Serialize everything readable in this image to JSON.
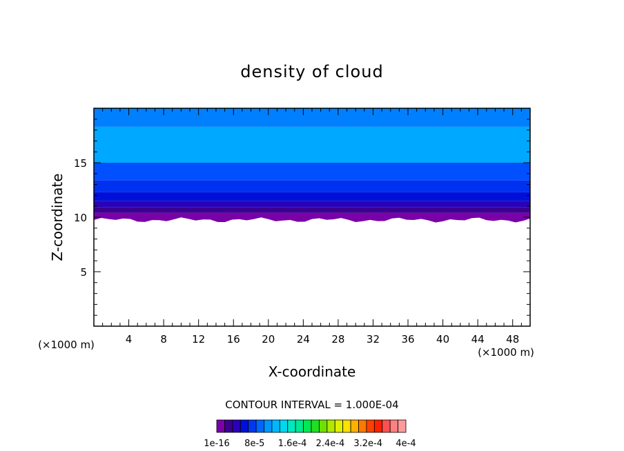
{
  "chart_data": {
    "type": "heatmap",
    "title": "density of cloud",
    "xlabel": "X-coordinate",
    "ylabel": "Z-coordinate",
    "x_unit": "(×1000 m)",
    "x_unit_right": "(×1000 m)",
    "xlim": [
      0,
      50
    ],
    "ylim": [
      0,
      20
    ],
    "x_ticks": [
      4,
      8,
      12,
      16,
      20,
      24,
      28,
      32,
      36,
      40,
      44,
      48
    ],
    "y_ticks": [
      5,
      10,
      15
    ],
    "contour_interval_label": "CONTOUR INTERVAL = 1.000E-04",
    "colorbar_tick_labels": [
      "1e-16",
      "8e-5",
      "1.6e-4",
      "2.4e-4",
      "3.2e-4",
      "4e-4"
    ],
    "colorbar_colors": [
      "#7a00a8",
      "#3c0090",
      "#2a00b8",
      "#0010d8",
      "#0038f0",
      "#0066ff",
      "#0095ff",
      "#00b8ff",
      "#00d8f0",
      "#00e8c0",
      "#00e890",
      "#00e850",
      "#20e020",
      "#70e000",
      "#b0e800",
      "#e0f000",
      "#ffe000",
      "#ffb000",
      "#ff7800",
      "#ff4000",
      "#ff2000",
      "#ff5050",
      "#ff8080",
      "#ff9a9a"
    ],
    "bands": [
      {
        "z_bottom": 9.6,
        "z_top": 10.4,
        "color": "#7a00a8"
      },
      {
        "z_bottom": 10.4,
        "z_top": 10.9,
        "color": "#3c0090"
      },
      {
        "z_bottom": 10.9,
        "z_top": 11.5,
        "color": "#2a00b8"
      },
      {
        "z_bottom": 11.5,
        "z_top": 12.3,
        "color": "#0010d8"
      },
      {
        "z_bottom": 12.3,
        "z_top": 13.4,
        "color": "#0030f0"
      },
      {
        "z_bottom": 13.4,
        "z_top": 15.0,
        "color": "#0050ff"
      },
      {
        "z_bottom": 15.0,
        "z_top": 18.3,
        "color": "#00a8ff"
      },
      {
        "z_bottom": 18.3,
        "z_top": 20.0,
        "color": "#0080ff"
      }
    ]
  }
}
